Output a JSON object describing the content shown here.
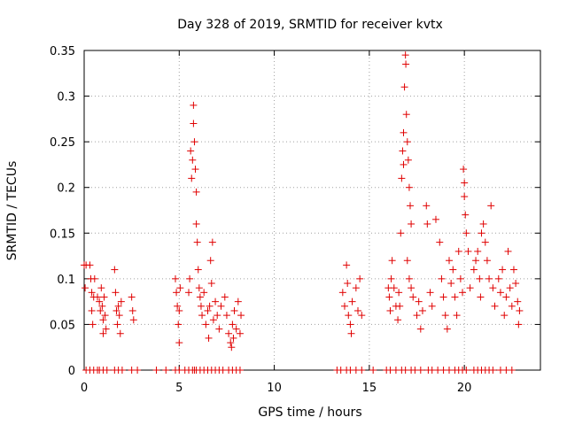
{
  "chart_data": {
    "type": "scatter",
    "title": "Day 328 of 2019, SRMTID for receiver kvtx",
    "xlabel": "GPS time / hours",
    "ylabel": "SRMTID / TECUs",
    "xlim": [
      0,
      24
    ],
    "ylim": [
      0,
      0.35
    ],
    "grid": true,
    "marker": "plus",
    "color": "#e00000",
    "x_ticks": [
      0,
      5,
      10,
      15,
      20
    ],
    "x_tick_labels": [
      "0",
      "5",
      "10",
      "15",
      "20"
    ],
    "y_ticks": [
      0,
      0.05,
      0.1,
      0.15,
      0.2,
      0.25,
      0.3,
      0.35
    ],
    "y_tick_labels": [
      "0",
      "0.05",
      "0.1",
      "0.15",
      "0.2",
      "0.25",
      "0.3",
      "0.35"
    ],
    "series": [
      {
        "name": "SRMTID",
        "points": [
          [
            0.0,
            0.115
          ],
          [
            0.05,
            0.09
          ],
          [
            0.1,
            0.115
          ],
          [
            0.3,
            0.115
          ],
          [
            0.35,
            0.1
          ],
          [
            0.4,
            0.085
          ],
          [
            0.4,
            0.065
          ],
          [
            0.45,
            0.05
          ],
          [
            0.5,
            0.08
          ],
          [
            0.55,
            0.1
          ],
          [
            0.7,
            0.08
          ],
          [
            0.8,
            0.075
          ],
          [
            0.85,
            0.065
          ],
          [
            0.9,
            0.09
          ],
          [
            0.95,
            0.07
          ],
          [
            1.0,
            0.055
          ],
          [
            1.0,
            0.04
          ],
          [
            1.05,
            0.08
          ],
          [
            1.1,
            0.06
          ],
          [
            1.15,
            0.045
          ],
          [
            1.6,
            0.11
          ],
          [
            1.65,
            0.085
          ],
          [
            1.7,
            0.065
          ],
          [
            1.75,
            0.05
          ],
          [
            1.8,
            0.07
          ],
          [
            1.85,
            0.06
          ],
          [
            1.9,
            0.04
          ],
          [
            1.95,
            0.075
          ],
          [
            2.5,
            0.08
          ],
          [
            2.55,
            0.065
          ],
          [
            2.6,
            0.055
          ],
          [
            4.8,
            0.1
          ],
          [
            4.85,
            0.085
          ],
          [
            4.9,
            0.07
          ],
          [
            4.95,
            0.05
          ],
          [
            5.0,
            0.03
          ],
          [
            5.0,
            0.065
          ],
          [
            5.05,
            0.09
          ],
          [
            5.5,
            0.085
          ],
          [
            5.55,
            0.1
          ],
          [
            5.6,
            0.24
          ],
          [
            5.65,
            0.21
          ],
          [
            5.7,
            0.23
          ],
          [
            5.75,
            0.29
          ],
          [
            5.75,
            0.27
          ],
          [
            5.8,
            0.25
          ],
          [
            5.85,
            0.22
          ],
          [
            5.9,
            0.195
          ],
          [
            5.9,
            0.16
          ],
          [
            5.95,
            0.14
          ],
          [
            6.0,
            0.11
          ],
          [
            6.05,
            0.09
          ],
          [
            6.1,
            0.08
          ],
          [
            6.15,
            0.07
          ],
          [
            6.2,
            0.06
          ],
          [
            6.3,
            0.085
          ],
          [
            6.4,
            0.05
          ],
          [
            6.5,
            0.065
          ],
          [
            6.55,
            0.035
          ],
          [
            6.6,
            0.07
          ],
          [
            6.65,
            0.12
          ],
          [
            6.7,
            0.095
          ],
          [
            6.75,
            0.14
          ],
          [
            6.8,
            0.055
          ],
          [
            6.9,
            0.075
          ],
          [
            7.0,
            0.06
          ],
          [
            7.1,
            0.045
          ],
          [
            7.2,
            0.07
          ],
          [
            7.4,
            0.08
          ],
          [
            7.5,
            0.06
          ],
          [
            7.6,
            0.04
          ],
          [
            7.7,
            0.03
          ],
          [
            7.75,
            0.025
          ],
          [
            7.8,
            0.05
          ],
          [
            7.85,
            0.035
          ],
          [
            7.9,
            0.065
          ],
          [
            8.0,
            0.045
          ],
          [
            8.1,
            0.075
          ],
          [
            8.2,
            0.04
          ],
          [
            8.25,
            0.06
          ],
          [
            13.6,
            0.085
          ],
          [
            13.7,
            0.07
          ],
          [
            13.8,
            0.115
          ],
          [
            13.85,
            0.095
          ],
          [
            13.9,
            0.06
          ],
          [
            14.0,
            0.05
          ],
          [
            14.05,
            0.04
          ],
          [
            14.1,
            0.075
          ],
          [
            14.3,
            0.09
          ],
          [
            14.4,
            0.065
          ],
          [
            14.5,
            0.1
          ],
          [
            14.6,
            0.06
          ],
          [
            16.0,
            0.09
          ],
          [
            16.05,
            0.08
          ],
          [
            16.1,
            0.065
          ],
          [
            16.15,
            0.1
          ],
          [
            16.2,
            0.12
          ],
          [
            16.3,
            0.09
          ],
          [
            16.4,
            0.07
          ],
          [
            16.5,
            0.055
          ],
          [
            16.55,
            0.085
          ],
          [
            16.6,
            0.07
          ],
          [
            16.65,
            0.15
          ],
          [
            16.7,
            0.21
          ],
          [
            16.75,
            0.24
          ],
          [
            16.8,
            0.26
          ],
          [
            16.8,
            0.225
          ],
          [
            16.85,
            0.31
          ],
          [
            16.9,
            0.345
          ],
          [
            16.92,
            0.335
          ],
          [
            16.95,
            0.28
          ],
          [
            17.0,
            0.25
          ],
          [
            17.05,
            0.23
          ],
          [
            17.1,
            0.2
          ],
          [
            17.15,
            0.18
          ],
          [
            17.2,
            0.16
          ],
          [
            17.0,
            0.12
          ],
          [
            17.1,
            0.1
          ],
          [
            17.2,
            0.09
          ],
          [
            17.3,
            0.08
          ],
          [
            17.5,
            0.06
          ],
          [
            17.6,
            0.075
          ],
          [
            17.7,
            0.045
          ],
          [
            17.8,
            0.065
          ],
          [
            18.0,
            0.18
          ],
          [
            18.05,
            0.16
          ],
          [
            18.2,
            0.085
          ],
          [
            18.3,
            0.07
          ],
          [
            18.5,
            0.165
          ],
          [
            18.7,
            0.14
          ],
          [
            18.8,
            0.1
          ],
          [
            18.9,
            0.08
          ],
          [
            19.0,
            0.06
          ],
          [
            19.1,
            0.045
          ],
          [
            19.2,
            0.12
          ],
          [
            19.3,
            0.095
          ],
          [
            19.4,
            0.11
          ],
          [
            19.5,
            0.08
          ],
          [
            19.6,
            0.06
          ],
          [
            19.7,
            0.13
          ],
          [
            19.8,
            0.1
          ],
          [
            19.9,
            0.085
          ],
          [
            19.95,
            0.22
          ],
          [
            20.0,
            0.205
          ],
          [
            20.0,
            0.19
          ],
          [
            20.05,
            0.17
          ],
          [
            20.1,
            0.15
          ],
          [
            20.2,
            0.13
          ],
          [
            20.3,
            0.09
          ],
          [
            20.5,
            0.11
          ],
          [
            20.6,
            0.12
          ],
          [
            20.7,
            0.13
          ],
          [
            20.8,
            0.1
          ],
          [
            20.85,
            0.08
          ],
          [
            20.9,
            0.15
          ],
          [
            21.0,
            0.16
          ],
          [
            21.1,
            0.14
          ],
          [
            21.2,
            0.12
          ],
          [
            21.3,
            0.1
          ],
          [
            21.4,
            0.18
          ],
          [
            21.5,
            0.09
          ],
          [
            21.6,
            0.07
          ],
          [
            21.8,
            0.1
          ],
          [
            21.9,
            0.085
          ],
          [
            22.0,
            0.11
          ],
          [
            22.1,
            0.06
          ],
          [
            22.2,
            0.08
          ],
          [
            22.3,
            0.13
          ],
          [
            22.4,
            0.09
          ],
          [
            22.5,
            0.07
          ],
          [
            22.6,
            0.11
          ],
          [
            22.7,
            0.095
          ],
          [
            22.8,
            0.075
          ],
          [
            22.85,
            0.05
          ],
          [
            22.9,
            0.065
          ]
        ]
      }
    ],
    "zero_points_x": [
      0.1,
      0.3,
      0.5,
      0.7,
      0.8,
      1.0,
      1.2,
      1.6,
      1.8,
      2.0,
      2.5,
      2.8,
      3.8,
      4.3,
      4.8,
      5.0,
      5.3,
      5.5,
      5.7,
      5.8,
      5.9,
      6.1,
      6.3,
      6.5,
      6.7,
      6.9,
      7.1,
      7.3,
      7.6,
      7.8,
      8.0,
      8.2,
      13.3,
      13.5,
      13.8,
      14.0,
      14.3,
      14.6,
      15.2,
      15.9,
      16.1,
      16.4,
      16.7,
      16.9,
      17.2,
      17.4,
      17.7,
      18.1,
      18.3,
      18.6,
      18.9,
      19.2,
      19.5,
      19.7,
      19.9,
      20.1,
      20.5,
      20.7,
      20.9,
      21.1,
      21.3,
      21.5,
      21.9,
      22.2,
      22.5
    ]
  }
}
